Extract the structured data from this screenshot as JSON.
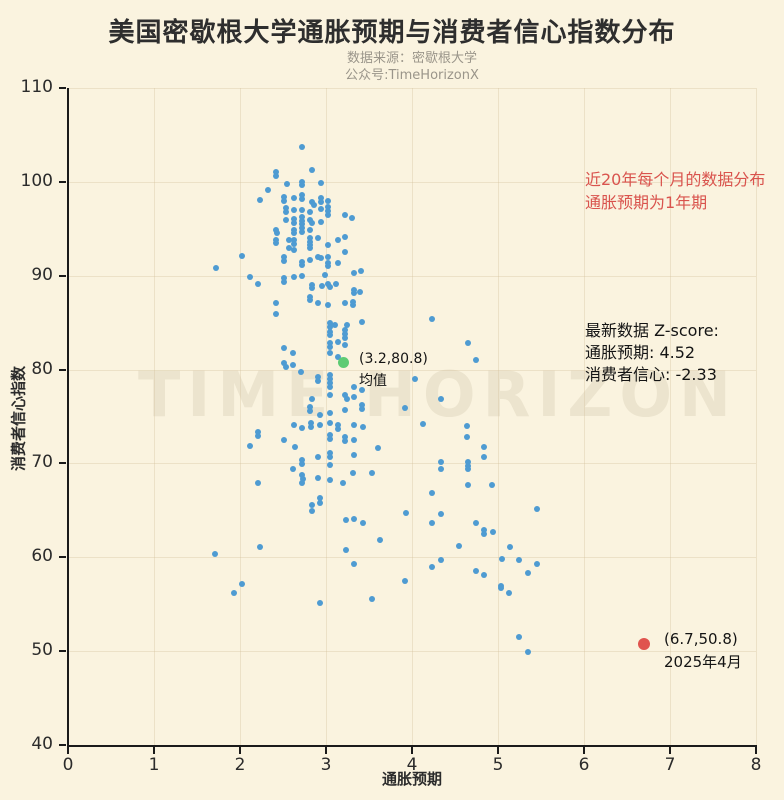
{
  "title": "美国密歇根大学通胀预期与消费者信心指数分布",
  "subtitle": {
    "line1": "数据来源：密歇根大学",
    "line2": "公众号:TimeHorizonX"
  },
  "watermark": "TIME HORIZON",
  "annotations": {
    "note_red_line1": "近20年每个月的数据分布",
    "note_red_line2": "通胀预期为1年期",
    "zscore_line1": "最新数据 Z-score:",
    "zscore_line2": "通胀预期: 4.52",
    "zscore_line3": "消费者信心: -2.33",
    "mean_label_line1": "(3.2,80.8)",
    "mean_label_line2": "均值",
    "latest_label_line1": "(6.7,50.8)",
    "latest_label_line2": "2025年4月"
  },
  "colors": {
    "background": "#faf3df",
    "scatter_blue": "#4e9bd2",
    "mean_green": "#5dcb74",
    "latest_red": "#e0544e",
    "note_red_text": "#d9534d",
    "axis": "#1a1a1a",
    "grid": "#e9dcbd"
  },
  "chart_data": {
    "type": "scatter",
    "title": "美国密歇根大学通胀预期与消费者信心指数分布",
    "xlabel": "通胀预期",
    "ylabel": "消费者信心指数",
    "xlim": [
      0,
      8
    ],
    "ylim": [
      40,
      110
    ],
    "x_ticks": [
      0,
      1,
      2,
      3,
      4,
      5,
      6,
      7,
      8
    ],
    "y_ticks": [
      40,
      50,
      60,
      70,
      80,
      90,
      100,
      110
    ],
    "grid": true,
    "legend_position": "none",
    "series": [
      {
        "name": "monthly-data",
        "color": "#4e9bd2",
        "marker_radius": 3,
        "points": [
          [
            2.72,
            103.7
          ],
          [
            2.42,
            101.0
          ],
          [
            2.42,
            100.6
          ],
          [
            2.84,
            101.3
          ],
          [
            2.72,
            100.0
          ],
          [
            2.72,
            99.7
          ],
          [
            2.94,
            99.9
          ],
          [
            2.33,
            99.1
          ],
          [
            2.55,
            99.8
          ],
          [
            2.23,
            98.1
          ],
          [
            2.51,
            98.4
          ],
          [
            2.51,
            98.0
          ],
          [
            2.63,
            98.3
          ],
          [
            2.72,
            98.6
          ],
          [
            2.72,
            98.2
          ],
          [
            2.84,
            97.9
          ],
          [
            2.86,
            97.5
          ],
          [
            2.94,
            98.3
          ],
          [
            2.94,
            97.9
          ],
          [
            3.02,
            98.0
          ],
          [
            2.53,
            97.2
          ],
          [
            2.53,
            96.8
          ],
          [
            2.63,
            97.0
          ],
          [
            2.72,
            97.0
          ],
          [
            2.81,
            96.8
          ],
          [
            2.94,
            97.1
          ],
          [
            3.02,
            97.3
          ],
          [
            3.02,
            96.9
          ],
          [
            3.02,
            96.5
          ],
          [
            3.22,
            96.5
          ],
          [
            3.3,
            96.1
          ],
          [
            2.53,
            95.9
          ],
          [
            2.63,
            96.0
          ],
          [
            2.63,
            95.6
          ],
          [
            2.72,
            96.3
          ],
          [
            2.72,
            95.8
          ],
          [
            2.72,
            95.5
          ],
          [
            2.81,
            95.9
          ],
          [
            2.84,
            95.6
          ],
          [
            2.94,
            95.7
          ],
          [
            2.42,
            94.9
          ],
          [
            2.43,
            94.5
          ],
          [
            2.63,
            94.9
          ],
          [
            2.63,
            94.5
          ],
          [
            2.72,
            95.1
          ],
          [
            2.72,
            94.7
          ],
          [
            2.81,
            94.9
          ],
          [
            2.91,
            94.0
          ],
          [
            2.42,
            93.8
          ],
          [
            2.42,
            93.5
          ],
          [
            2.57,
            93.8
          ],
          [
            2.63,
            93.8
          ],
          [
            2.63,
            93.4
          ],
          [
            2.81,
            94.0
          ],
          [
            2.81,
            93.6
          ],
          [
            2.81,
            93.3
          ],
          [
            2.81,
            92.9
          ],
          [
            3.02,
            93.3
          ],
          [
            3.14,
            93.8
          ],
          [
            3.22,
            94.1
          ],
          [
            2.57,
            92.9
          ],
          [
            2.63,
            92.7
          ],
          [
            2.91,
            92.0
          ],
          [
            2.94,
            91.9
          ],
          [
            3.02,
            92.0
          ],
          [
            3.22,
            92.5
          ],
          [
            2.02,
            92.1
          ],
          [
            1.72,
            90.8
          ],
          [
            2.51,
            92.0
          ],
          [
            2.51,
            91.6
          ],
          [
            2.72,
            91.5
          ],
          [
            2.72,
            91.1
          ],
          [
            2.81,
            91.7
          ],
          [
            3.02,
            91.4
          ],
          [
            3.02,
            91.0
          ],
          [
            3.14,
            91.4
          ],
          [
            2.12,
            89.9
          ],
          [
            2.21,
            89.1
          ],
          [
            2.51,
            89.8
          ],
          [
            2.51,
            89.3
          ],
          [
            2.63,
            89.9
          ],
          [
            2.72,
            90.0
          ],
          [
            2.99,
            90.1
          ],
          [
            3.33,
            90.3
          ],
          [
            3.41,
            90.5
          ],
          [
            2.84,
            89.0
          ],
          [
            2.84,
            88.7
          ],
          [
            2.95,
            88.9
          ],
          [
            3.02,
            89.1
          ],
          [
            3.05,
            88.8
          ],
          [
            3.12,
            89.1
          ],
          [
            3.33,
            88.5
          ],
          [
            3.33,
            88.2
          ],
          [
            3.4,
            88.3
          ],
          [
            2.42,
            87.1
          ],
          [
            2.81,
            87.7
          ],
          [
            2.81,
            87.4
          ],
          [
            2.91,
            87.1
          ],
          [
            3.02,
            86.9
          ],
          [
            3.22,
            87.1
          ],
          [
            3.31,
            87.2
          ],
          [
            3.31,
            86.9
          ],
          [
            2.42,
            85.9
          ],
          [
            3.05,
            85.0
          ],
          [
            3.05,
            84.5
          ],
          [
            3.1,
            84.7
          ],
          [
            3.24,
            84.7
          ],
          [
            3.42,
            85.1
          ],
          [
            3.05,
            84.0
          ],
          [
            3.05,
            83.7
          ],
          [
            3.22,
            84.2
          ],
          [
            3.22,
            83.8
          ],
          [
            3.22,
            83.4
          ],
          [
            3.05,
            82.8
          ],
          [
            3.05,
            82.4
          ],
          [
            3.14,
            82.9
          ],
          [
            3.22,
            82.6
          ],
          [
            2.51,
            82.3
          ],
          [
            2.62,
            81.8
          ],
          [
            3.05,
            81.8
          ],
          [
            3.14,
            81.3
          ],
          [
            2.51,
            80.7
          ],
          [
            2.53,
            80.3
          ],
          [
            2.62,
            80.5
          ],
          [
            2.71,
            79.7
          ],
          [
            2.91,
            79.2
          ],
          [
            2.91,
            78.8
          ],
          [
            3.05,
            79.4
          ],
          [
            3.05,
            79.0
          ],
          [
            3.05,
            78.6
          ],
          [
            3.05,
            78.1
          ],
          [
            3.33,
            78.1
          ],
          [
            3.42,
            77.8
          ],
          [
            2.84,
            76.9
          ],
          [
            3.05,
            77.3
          ],
          [
            3.22,
            77.3
          ],
          [
            3.24,
            76.9
          ],
          [
            3.33,
            77.1
          ],
          [
            3.42,
            76.2
          ],
          [
            3.42,
            75.8
          ],
          [
            2.81,
            76.0
          ],
          [
            2.81,
            75.6
          ],
          [
            2.93,
            75.2
          ],
          [
            3.05,
            75.4
          ],
          [
            3.22,
            75.7
          ],
          [
            3.92,
            75.9
          ],
          [
            2.63,
            74.1
          ],
          [
            2.72,
            73.8
          ],
          [
            2.83,
            74.3
          ],
          [
            2.83,
            73.9
          ],
          [
            2.93,
            74.1
          ],
          [
            3.05,
            74.3
          ],
          [
            3.14,
            74.1
          ],
          [
            3.14,
            73.7
          ],
          [
            3.33,
            74.1
          ],
          [
            3.43,
            73.9
          ],
          [
            2.21,
            73.3
          ],
          [
            2.21,
            72.9
          ],
          [
            2.51,
            72.5
          ],
          [
            2.12,
            71.9
          ],
          [
            2.64,
            71.7
          ],
          [
            3.05,
            73.0
          ],
          [
            3.05,
            72.6
          ],
          [
            3.22,
            72.8
          ],
          [
            3.22,
            72.4
          ],
          [
            3.33,
            72.5
          ],
          [
            3.6,
            71.6
          ],
          [
            2.91,
            70.7
          ],
          [
            3.05,
            71.1
          ],
          [
            3.05,
            70.7
          ],
          [
            3.33,
            70.9
          ],
          [
            2.72,
            70.4
          ],
          [
            2.72,
            69.9
          ],
          [
            2.62,
            69.4
          ],
          [
            3.05,
            69.8
          ],
          [
            3.31,
            69.0
          ],
          [
            3.53,
            69.0
          ],
          [
            2.72,
            68.8
          ],
          [
            2.73,
            68.3
          ],
          [
            2.72,
            67.9
          ],
          [
            2.91,
            68.4
          ],
          [
            3.05,
            68.2
          ],
          [
            2.21,
            67.9
          ],
          [
            3.2,
            67.9
          ],
          [
            4.23,
            85.4
          ],
          [
            4.65,
            82.8
          ],
          [
            4.74,
            81.0
          ],
          [
            4.03,
            79.0
          ],
          [
            4.34,
            76.9
          ],
          [
            4.13,
            74.2
          ],
          [
            4.64,
            74.0
          ],
          [
            4.64,
            72.8
          ],
          [
            4.84,
            71.7
          ],
          [
            4.84,
            70.7
          ],
          [
            4.34,
            70.1
          ],
          [
            4.34,
            69.4
          ],
          [
            4.65,
            70.1
          ],
          [
            4.65,
            69.7
          ],
          [
            4.65,
            69.4
          ],
          [
            4.65,
            67.7
          ],
          [
            4.93,
            67.7
          ],
          [
            2.93,
            66.3
          ],
          [
            2.93,
            65.8
          ],
          [
            2.84,
            65.6
          ],
          [
            2.84,
            64.9
          ],
          [
            3.23,
            64.0
          ],
          [
            3.33,
            64.1
          ],
          [
            3.43,
            63.7
          ],
          [
            3.63,
            61.8
          ],
          [
            2.23,
            61.1
          ],
          [
            1.71,
            60.3
          ],
          [
            3.23,
            60.8
          ],
          [
            3.33,
            59.3
          ],
          [
            2.02,
            57.2
          ],
          [
            1.93,
            56.2
          ],
          [
            2.93,
            55.1
          ],
          [
            3.53,
            55.6
          ],
          [
            4.23,
            66.8
          ],
          [
            3.93,
            64.7
          ],
          [
            4.34,
            64.6
          ],
          [
            4.23,
            63.7
          ],
          [
            4.74,
            63.7
          ],
          [
            4.84,
            62.9
          ],
          [
            4.84,
            62.5
          ],
          [
            4.94,
            62.7
          ],
          [
            5.45,
            65.1
          ],
          [
            4.55,
            61.2
          ],
          [
            5.14,
            61.1
          ],
          [
            4.34,
            59.7
          ],
          [
            4.23,
            59.0
          ],
          [
            5.05,
            59.8
          ],
          [
            5.24,
            59.7
          ],
          [
            5.45,
            59.3
          ],
          [
            4.74,
            58.5
          ],
          [
            4.84,
            58.1
          ],
          [
            5.35,
            58.3
          ],
          [
            3.92,
            57.5
          ],
          [
            5.03,
            56.9
          ],
          [
            5.03,
            56.7
          ],
          [
            5.13,
            56.2
          ],
          [
            5.24,
            51.5
          ],
          [
            5.35,
            49.9
          ]
        ]
      },
      {
        "name": "mean-point",
        "color": "#5dcb74",
        "marker_radius": 5.5,
        "points": [
          [
            3.2,
            80.8
          ]
        ]
      },
      {
        "name": "latest-point",
        "color": "#e0544e",
        "marker_radius": 6,
        "points": [
          [
            6.7,
            50.8
          ]
        ]
      }
    ]
  }
}
